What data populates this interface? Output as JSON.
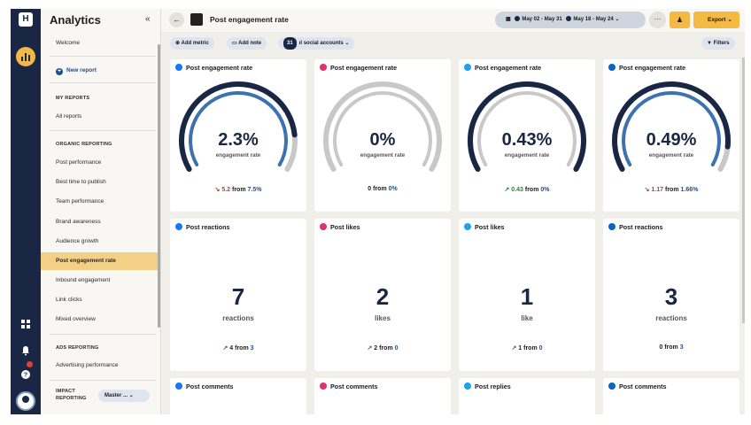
{
  "app": {
    "title": "Analytics",
    "logo_text": "H"
  },
  "sidebar": {
    "welcome": "Welcome",
    "new_report": "New report",
    "my_reports_heading": "MY REPORTS",
    "all_reports": "All reports",
    "organic_heading": "ORGANIC REPORTING",
    "organic_items": [
      "Post performance",
      "Best time to publish",
      "Team performance",
      "Brand awareness",
      "Audience growth",
      "Post engagement rate",
      "Inbound engagement",
      "Link clicks",
      "Mixed overview"
    ],
    "active_item": "Post engagement rate",
    "ads_heading": "ADS REPORTING",
    "ads_items": [
      "Advertising performance"
    ],
    "impact_heading_line1": "IMPACT",
    "impact_heading_line2": "REPORTING",
    "impact_select": "Master ..."
  },
  "header": {
    "page_title": "Post engagement rate",
    "date_range_current": "May 02 - May 31",
    "date_range_compare": "May 18 - May 24",
    "export_label": "Export"
  },
  "toolbar": {
    "add_metric": "Add metric",
    "add_note": "Add note",
    "accounts_count": "31",
    "accounts_label": "social accounts",
    "filters": "Filters"
  },
  "colors": {
    "rail": "#1a2744",
    "accent": "#f3b942",
    "gauge_fill": "#1a2744",
    "gauge_inner": "#3d72b0",
    "gauge_track": "#c8c8c8"
  },
  "gauges": [
    {
      "network": "facebook",
      "title": "Post engagement rate",
      "value": "2.3%",
      "fill": 0.85,
      "label": "engagement rate",
      "change": "5.2",
      "direction": "down",
      "from_word": "from",
      "previous": "7.5%"
    },
    {
      "network": "instagram",
      "title": "Post engagement rate",
      "value": "0%",
      "fill": 0.0,
      "label": "engagement rate",
      "change": "0",
      "direction": "none",
      "from_word": "from",
      "previous": "0%"
    },
    {
      "network": "twitter",
      "title": "Post engagement rate",
      "value": "0.43%",
      "fill": 1.0,
      "label": "engagement rate",
      "change": "0.43",
      "direction": "up",
      "from_word": "from",
      "previous": "0%"
    },
    {
      "network": "linkedin",
      "title": "Post engagement rate",
      "value": "0.49%",
      "fill": 0.9,
      "label": "engagement rate",
      "change": "1.17",
      "direction": "down",
      "from_word": "from",
      "previous": "1.66%"
    }
  ],
  "counts": [
    {
      "network": "facebook",
      "title": "Post reactions",
      "value": "7",
      "unit": "reactions",
      "change": "4",
      "direction": "up",
      "from_word": "from",
      "previous": "3"
    },
    {
      "network": "instagram",
      "title": "Post likes",
      "value": "2",
      "unit": "likes",
      "change": "2",
      "direction": "up",
      "from_word": "from",
      "previous": "0"
    },
    {
      "network": "twitter",
      "title": "Post likes",
      "value": "1",
      "unit": "like",
      "change": "1",
      "direction": "up",
      "from_word": "from",
      "previous": "0"
    },
    {
      "network": "linkedin",
      "title": "Post reactions",
      "value": "3",
      "unit": "reactions",
      "change": "0",
      "direction": "none",
      "from_word": "from",
      "previous": "3"
    }
  ],
  "bottom_cards": [
    {
      "network": "facebook",
      "title": "Post comments"
    },
    {
      "network": "instagram",
      "title": "Post comments"
    },
    {
      "network": "twitter",
      "title": "Post replies"
    },
    {
      "network": "linkedin",
      "title": "Post comments"
    }
  ]
}
